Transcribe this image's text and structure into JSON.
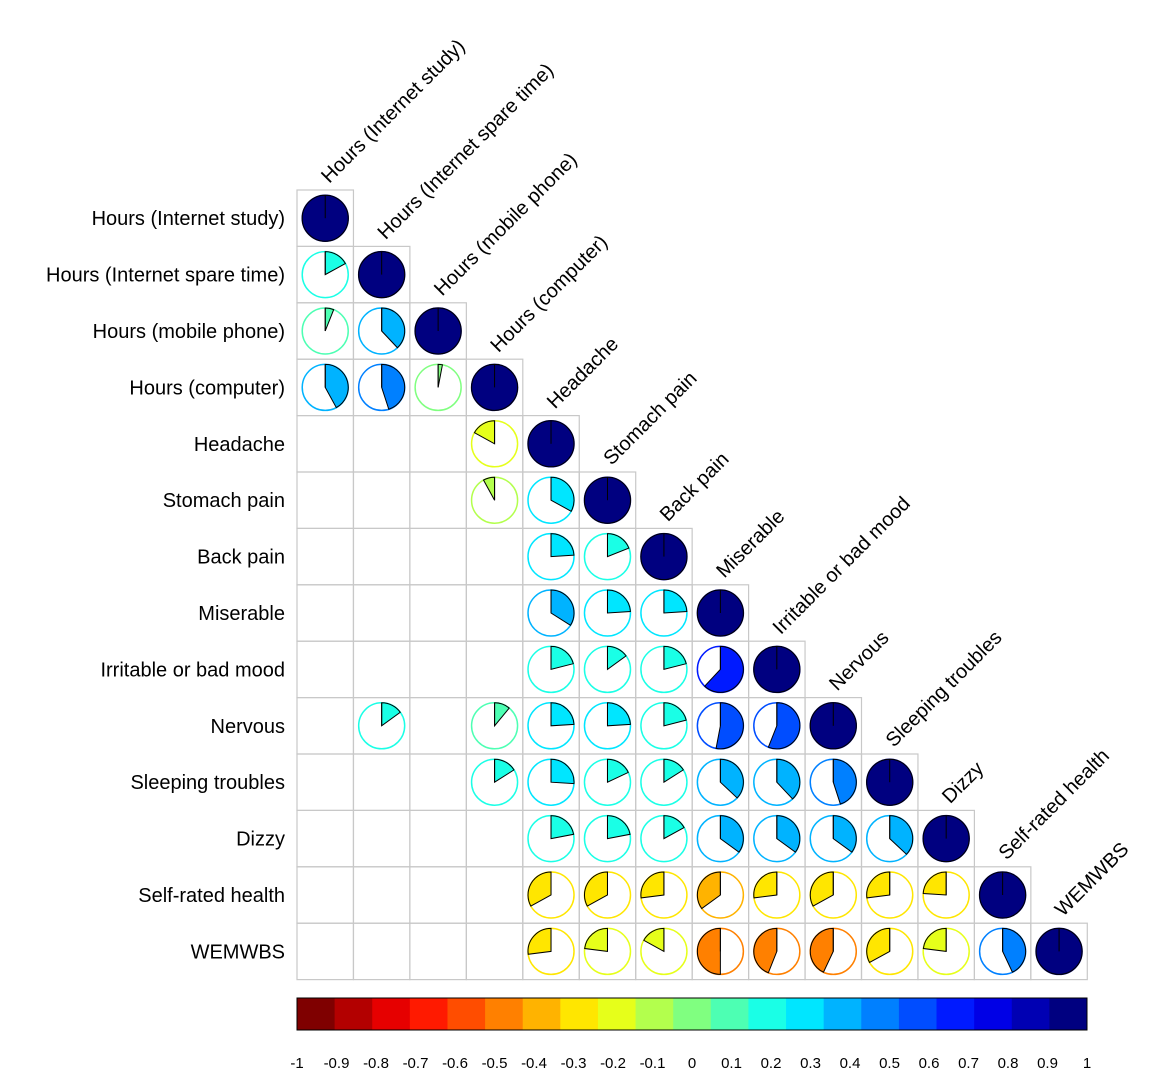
{
  "chart_data": {
    "type": "heatmap",
    "subtype": "correlation-matrix-pie",
    "variables": [
      "Hours (Internet study)",
      "Hours (Internet spare time)",
      "Hours (mobile phone)",
      "Hours (computer)",
      "Headache",
      "Stomach pain",
      "Back pain",
      "Miserable",
      "Irritable or bad mood",
      "Nervous",
      "Sleeping troubles",
      "Dizzy",
      "Self-rated health",
      "WEMWBS"
    ],
    "correlations": [
      [
        1
      ],
      [
        0.17,
        1
      ],
      [
        0.06,
        0.38,
        1
      ],
      [
        0.42,
        0.45,
        0.03,
        1
      ],
      [
        null,
        null,
        null,
        -0.17,
        1
      ],
      [
        null,
        null,
        null,
        -0.08,
        0.33,
        1
      ],
      [
        null,
        null,
        null,
        null,
        0.24,
        0.19,
        1
      ],
      [
        null,
        null,
        null,
        null,
        0.34,
        0.24,
        0.24,
        1
      ],
      [
        null,
        null,
        null,
        null,
        0.21,
        0.15,
        0.21,
        0.62,
        1
      ],
      [
        null,
        0.15,
        null,
        0.11,
        0.24,
        0.24,
        0.21,
        0.53,
        0.56,
        1
      ],
      [
        null,
        null,
        null,
        0.16,
        0.26,
        0.18,
        0.16,
        0.37,
        0.38,
        0.45,
        1
      ],
      [
        null,
        null,
        null,
        null,
        0.22,
        0.22,
        0.17,
        0.35,
        0.35,
        0.35,
        0.37,
        1
      ],
      [
        null,
        null,
        null,
        null,
        -0.33,
        -0.33,
        -0.27,
        -0.35,
        -0.27,
        -0.33,
        -0.27,
        -0.24,
        1
      ],
      [
        null,
        null,
        null,
        null,
        -0.27,
        -0.23,
        -0.17,
        -0.5,
        -0.44,
        -0.43,
        -0.33,
        -0.23,
        0.43,
        1
      ]
    ],
    "colorbar": {
      "range": [
        -1,
        1
      ],
      "tick_labels": [
        "-1",
        "-0.9",
        "-0.8",
        "-0.7",
        "-0.6",
        "-0.5",
        "-0.4",
        "-0.3",
        "-0.2",
        "-0.1",
        "0",
        "0.1",
        "0.2",
        "0.3",
        "0.4",
        "0.5",
        "0.6",
        "0.7",
        "0.8",
        "0.9",
        "1"
      ],
      "colors": [
        "#7f0000",
        "#b30000",
        "#e60000",
        "#ff1a00",
        "#ff4d00",
        "#ff8000",
        "#ffb300",
        "#ffe600",
        "#e6ff1a",
        "#b3ff4d",
        "#80ff80",
        "#4dffb3",
        "#1affe6",
        "#00e6ff",
        "#00b3ff",
        "#0080ff",
        "#004dff",
        "#001aff",
        "#0000e6",
        "#0000b3",
        "#000080"
      ]
    }
  }
}
